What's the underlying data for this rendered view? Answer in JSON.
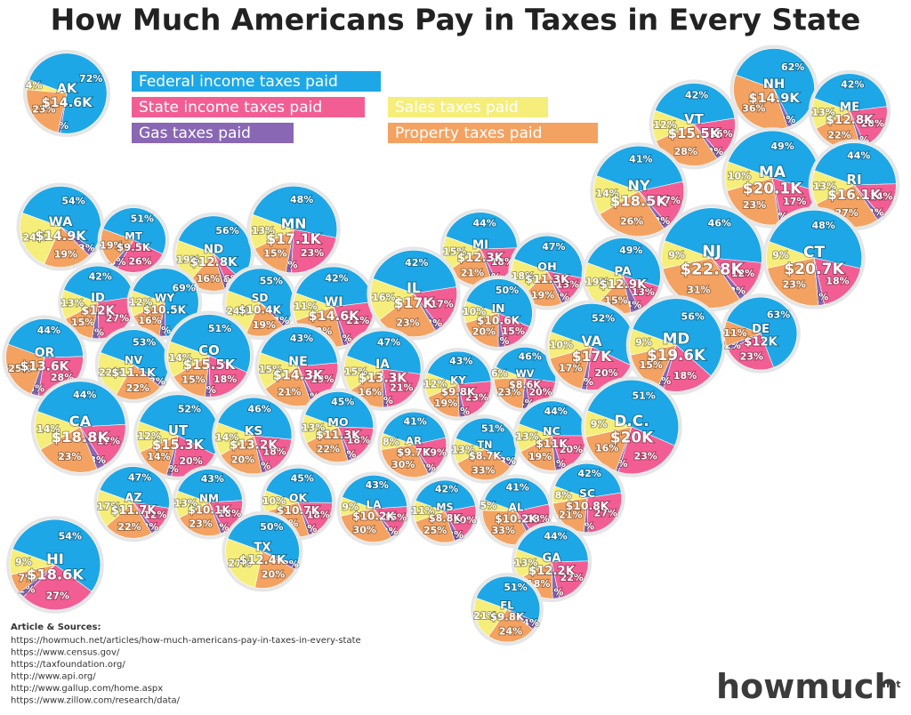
{
  "chart_data": {
    "type": "pie-map",
    "title": "How Much Americans Pay in Taxes in Every State",
    "series": [
      {
        "name": "Federal income taxes paid",
        "color": "#1ea7e6"
      },
      {
        "name": "State income taxes paid",
        "color": "#f25e93"
      },
      {
        "name": "Gas taxes paid",
        "color": "#8a67b5"
      },
      {
        "name": "Sales taxes paid",
        "color": "#f6ee7b"
      },
      {
        "name": "Property taxes paid",
        "color": "#f4a261"
      }
    ],
    "states": [
      {
        "name": "AK",
        "total": 14600,
        "total_label": "$14.6K",
        "values": [
          72,
          null,
          1,
          4,
          23
        ],
        "value_labels": [
          "72%",
          null,
          "1%",
          "4%",
          "23%"
        ]
      },
      {
        "name": "NH",
        "total": 14900,
        "total_label": "$14.9K",
        "values": [
          62,
          null,
          2,
          null,
          36
        ],
        "value_labels": [
          "62%",
          null,
          "2%",
          null,
          "36%"
        ]
      },
      {
        "name": "VT",
        "total": 15500,
        "total_label": "$15.5K",
        "values": [
          42,
          16,
          2,
          12,
          28
        ],
        "value_labels": [
          "42%",
          "16%",
          "2%",
          "12%",
          "28%"
        ]
      },
      {
        "name": "ME",
        "total": 12800,
        "total_label": "$12.8K",
        "values": [
          42,
          20,
          2,
          13,
          22
        ],
        "value_labels": [
          "42%",
          "20%",
          "2%",
          "13%",
          "22%"
        ]
      },
      {
        "name": "MA",
        "total": 20100,
        "total_label": "$20.1K",
        "values": [
          49,
          17,
          1,
          10,
          23
        ],
        "value_labels": [
          "49%",
          "17%",
          "1%",
          "10%",
          "23%"
        ]
      },
      {
        "name": "RI",
        "total": 16100,
        "total_label": "$16.1K",
        "values": [
          44,
          14,
          2,
          13,
          27
        ],
        "value_labels": [
          "44%",
          "14%",
          "2%",
          "13%",
          "27%"
        ]
      },
      {
        "name": "NY",
        "total": 18500,
        "total_label": "$18.5K",
        "values": [
          41,
          17,
          2,
          14,
          26
        ],
        "value_labels": [
          "41%",
          "17%",
          "2%",
          "14%",
          "26%"
        ]
      },
      {
        "name": "CT",
        "total": 20700,
        "total_label": "$20.7K",
        "values": [
          48,
          18,
          2,
          9,
          23
        ],
        "value_labels": [
          "48%",
          "18%",
          "2%",
          "9%",
          "23%"
        ]
      },
      {
        "name": "NJ",
        "total": 22800,
        "total_label": "$22.8K",
        "values": [
          46,
          12,
          2,
          9,
          31
        ],
        "value_labels": [
          "46%",
          "12%",
          "2%",
          "9%",
          "31%"
        ]
      },
      {
        "name": "WA",
        "total": 14900,
        "total_label": "$14.9K",
        "values": [
          54,
          null,
          3,
          24,
          19
        ],
        "value_labels": [
          "54%",
          null,
          "3%",
          "24%",
          "19%"
        ]
      },
      {
        "name": "MT",
        "total": 9500,
        "total_label": "$9.5K",
        "values": [
          51,
          26,
          3,
          null,
          19
        ],
        "value_labels": [
          "51%",
          "26%",
          "3%",
          null,
          "19%"
        ]
      },
      {
        "name": "ND",
        "total": 12800,
        "total_label": "$12.8K",
        "values": [
          56,
          6,
          2,
          19,
          16
        ],
        "value_labels": [
          "56%",
          "6%",
          "2%",
          "19%",
          "16%"
        ]
      },
      {
        "name": "MN",
        "total": 17100,
        "total_label": "$17.1K",
        "values": [
          48,
          23,
          2,
          13,
          15
        ],
        "value_labels": [
          "48%",
          "23%",
          "2%",
          "13%",
          "15%"
        ]
      },
      {
        "name": "MI",
        "total": 12300,
        "total_label": "$12.3K",
        "values": [
          44,
          18,
          2,
          15,
          21
        ],
        "value_labels": [
          "44%",
          "18%",
          "2%",
          "15%",
          "21%"
        ]
      },
      {
        "name": "OH",
        "total": 11300,
        "total_label": "$11.3K",
        "values": [
          47,
          13,
          2,
          18,
          19
        ],
        "value_labels": [
          "47%",
          "13%",
          "2%",
          "18%",
          "19%"
        ]
      },
      {
        "name": "PA",
        "total": 12900,
        "total_label": "$12.9K",
        "values": [
          49,
          13,
          4,
          19,
          15
        ],
        "value_labels": [
          "49%",
          "13%",
          "4%",
          "19%",
          "15%"
        ]
      },
      {
        "name": "ID",
        "total": 12000,
        "total_label": "$12K",
        "values": [
          42,
          27,
          3,
          13,
          15
        ],
        "value_labels": [
          "42%",
          "27%",
          "3%",
          "13%",
          "15%"
        ]
      },
      {
        "name": "WY",
        "total": 10500,
        "total_label": "$10.5K",
        "values": [
          69,
          null,
          3,
          12,
          16
        ],
        "value_labels": [
          "69%",
          null,
          "3%",
          "12%",
          "16%"
        ]
      },
      {
        "name": "SD",
        "total": 10400,
        "total_label": "$10.4K",
        "values": [
          55,
          null,
          2,
          24,
          19
        ],
        "value_labels": [
          "55%",
          null,
          "2%",
          "24%",
          "19%"
        ]
      },
      {
        "name": "WI",
        "total": 14600,
        "total_label": "$14.6K",
        "values": [
          42,
          21,
          2,
          11,
          23
        ],
        "value_labels": [
          "42%",
          "21%",
          "2%",
          "11%",
          "23%"
        ]
      },
      {
        "name": "IL",
        "total": 17000,
        "total_label": "$17K",
        "values": [
          42,
          17,
          2,
          16,
          23
        ],
        "value_labels": [
          "42%",
          "17%",
          "2%",
          "16%",
          "23%"
        ]
      },
      {
        "name": "IN",
        "total": 10600,
        "total_label": "$10.6K",
        "values": [
          50,
          15,
          3,
          10,
          20
        ],
        "value_labels": [
          "50%",
          "15%",
          "3%",
          "10%",
          "20%"
        ]
      },
      {
        "name": "OR",
        "total": 13600,
        "total_label": "$13.6K",
        "values": [
          44,
          28,
          3,
          null,
          25
        ],
        "value_labels": [
          "44%",
          "28%",
          "3%",
          null,
          "25%"
        ]
      },
      {
        "name": "NV",
        "total": 11100,
        "total_label": "$11.1K",
        "values": [
          53,
          null,
          2,
          22,
          22
        ],
        "value_labels": [
          "53%",
          null,
          "2%",
          "22%",
          "22%"
        ]
      },
      {
        "name": "CO",
        "total": 15500,
        "total_label": "$15.5K",
        "values": [
          51,
          18,
          2,
          14,
          15
        ],
        "value_labels": [
          "51%",
          "18%",
          "2%",
          "14%",
          "15%"
        ]
      },
      {
        "name": "NE",
        "total": 14300,
        "total_label": "$14.3K",
        "values": [
          43,
          19,
          2,
          15,
          21
        ],
        "value_labels": [
          "43%",
          "19%",
          "2%",
          "15%",
          "21%"
        ]
      },
      {
        "name": "IA",
        "total": 13300,
        "total_label": "$13.3K",
        "values": [
          47,
          21,
          2,
          15,
          16
        ],
        "value_labels": [
          "47%",
          "21%",
          "2%",
          "15%",
          "16%"
        ]
      },
      {
        "name": "KY",
        "total": 9800,
        "total_label": "$9.8K",
        "values": [
          43,
          23,
          3,
          12,
          19
        ],
        "value_labels": [
          "43%",
          "23%",
          "3%",
          "12%",
          "19%"
        ]
      },
      {
        "name": "WV",
        "total": 8600,
        "total_label": "$8.6K",
        "values": [
          46,
          20,
          4,
          6,
          23
        ],
        "value_labels": [
          "46%",
          "20%",
          "4%",
          "6%",
          "23%"
        ]
      },
      {
        "name": "VA",
        "total": 17000,
        "total_label": "$17K",
        "values": [
          52,
          20,
          2,
          10,
          17
        ],
        "value_labels": [
          "52%",
          "20%",
          "2%",
          "10%",
          "17%"
        ]
      },
      {
        "name": "MD",
        "total": 19600,
        "total_label": "$19.6K",
        "values": [
          56,
          18,
          2,
          9,
          15
        ],
        "value_labels": [
          "56%",
          "18%",
          "2%",
          "9%",
          "15%"
        ]
      },
      {
        "name": "DE",
        "total": 12000,
        "total_label": "$12K",
        "values": [
          63,
          23,
          2,
          null,
          11
        ],
        "value_labels": [
          "63%",
          "23%",
          "2%",
          null,
          "11%"
        ]
      },
      {
        "name": "CA",
        "total": 18800,
        "total_label": "$18.8K",
        "values": [
          44,
          17,
          3,
          14,
          23
        ],
        "value_labels": [
          "44%",
          "17%",
          "3%",
          "14%",
          "23%"
        ]
      },
      {
        "name": "UT",
        "total": 15300,
        "total_label": "$15.3K",
        "values": [
          52,
          20,
          2,
          12,
          14
        ],
        "value_labels": [
          "52%",
          "20%",
          "2%",
          "12%",
          "14%"
        ]
      },
      {
        "name": "KS",
        "total": 13200,
        "total_label": "$13.2K",
        "values": [
          46,
          18,
          2,
          14,
          20
        ],
        "value_labels": [
          "46%",
          "18%",
          "2%",
          "14%",
          "20%"
        ]
      },
      {
        "name": "MO",
        "total": 11300,
        "total_label": "$11.3K",
        "values": [
          45,
          18,
          2,
          13,
          22
        ],
        "value_labels": [
          "45%",
          "18%",
          "2%",
          "13%",
          "22%"
        ]
      },
      {
        "name": "AR",
        "total": 9700,
        "total_label": "$9.7K",
        "values": [
          41,
          19,
          2,
          8,
          30
        ],
        "value_labels": [
          "41%",
          "19%",
          "2%",
          "8%",
          "30%"
        ]
      },
      {
        "name": "TN",
        "total": 8700,
        "total_label": "$8.7K",
        "values": [
          51,
          null,
          3,
          13,
          33
        ],
        "value_labels": [
          "51%",
          null,
          "3%",
          "13%",
          "33%"
        ]
      },
      {
        "name": "NC",
        "total": 11000,
        "total_label": "$11K",
        "values": [
          44,
          20,
          3,
          13,
          19
        ],
        "value_labels": [
          "44%",
          "20%",
          "3%",
          "13%",
          "19%"
        ]
      },
      {
        "name": "D.C.",
        "total": 20000,
        "total_label": "$20K",
        "values": [
          51,
          23,
          1,
          9,
          16
        ],
        "value_labels": [
          "51%",
          "23%",
          "1%",
          "9%",
          "16%"
        ]
      },
      {
        "name": "AZ",
        "total": 11700,
        "total_label": "$11.7K",
        "values": [
          47,
          12,
          2,
          17,
          22
        ],
        "value_labels": [
          "47%",
          "12%",
          "2%",
          "17%",
          "22%"
        ]
      },
      {
        "name": "NM",
        "total": 10100,
        "total_label": "$10.1K",
        "values": [
          43,
          18,
          2,
          13,
          23
        ],
        "value_labels": [
          "43%",
          "18%",
          "2%",
          "13%",
          "23%"
        ]
      },
      {
        "name": "OK",
        "total": 10700,
        "total_label": "$10.7K",
        "values": [
          45,
          18,
          2,
          10,
          26
        ],
        "value_labels": [
          "45%",
          "18%",
          "2%",
          "10%",
          "26%"
        ]
      },
      {
        "name": "LA",
        "total": 10200,
        "total_label": "$10.2K",
        "values": [
          43,
          15,
          2,
          9,
          30
        ],
        "value_labels": [
          "43%",
          "15%",
          "2%",
          "9%",
          "30%"
        ]
      },
      {
        "name": "MS",
        "total": 8800,
        "total_label": "$8.8K",
        "values": [
          42,
          20,
          3,
          11,
          25
        ],
        "value_labels": [
          "42%",
          "20%",
          "3%",
          "11%",
          "25%"
        ]
      },
      {
        "name": "AL",
        "total": 10200,
        "total_label": "$10.2K",
        "values": [
          41,
          18,
          3,
          5,
          33
        ],
        "value_labels": [
          "41%",
          "18%",
          "3%",
          "5%",
          "33%"
        ]
      },
      {
        "name": "SC",
        "total": 10800,
        "total_label": "$10.8K",
        "values": [
          42,
          27,
          2,
          8,
          21
        ],
        "value_labels": [
          "42%",
          "27%",
          "2%",
          "8%",
          "21%"
        ]
      },
      {
        "name": "GA",
        "total": 12200,
        "total_label": "$12.2K",
        "values": [
          44,
          22,
          3,
          13,
          18
        ],
        "value_labels": [
          "44%",
          "22%",
          "3%",
          "13%",
          "18%"
        ]
      },
      {
        "name": "TX",
        "total": 12400,
        "total_label": "$12.4K",
        "values": [
          50,
          null,
          2,
          27,
          20
        ],
        "value_labels": [
          "50%",
          null,
          "2%",
          "27%",
          "20%"
        ]
      },
      {
        "name": "HI",
        "total": 18600,
        "total_label": "$18.6K",
        "values": [
          54,
          27,
          2,
          9,
          7
        ],
        "value_labels": [
          "54%",
          "27%",
          "2%",
          "9%",
          "7%"
        ]
      },
      {
        "name": "FL",
        "total": 9800,
        "total_label": "$9.8K",
        "values": [
          51,
          null,
          4,
          21,
          24
        ],
        "value_labels": [
          "51%",
          null,
          "4%",
          "21%",
          "24%"
        ]
      }
    ]
  },
  "footer": {
    "sources_heading": "Article & Sources:",
    "sources": [
      "https://howmuch.net/articles/how-much-americans-pay-in-taxes-in-every-state",
      "https://www.census.gov/",
      "https://taxfoundation.org/",
      "http://www.api.org/",
      "http://www.gallup.com/home.aspx",
      "https://www.zillow.com/research/data/"
    ],
    "logo_main": "howmuch",
    "logo_suffix": "net"
  }
}
